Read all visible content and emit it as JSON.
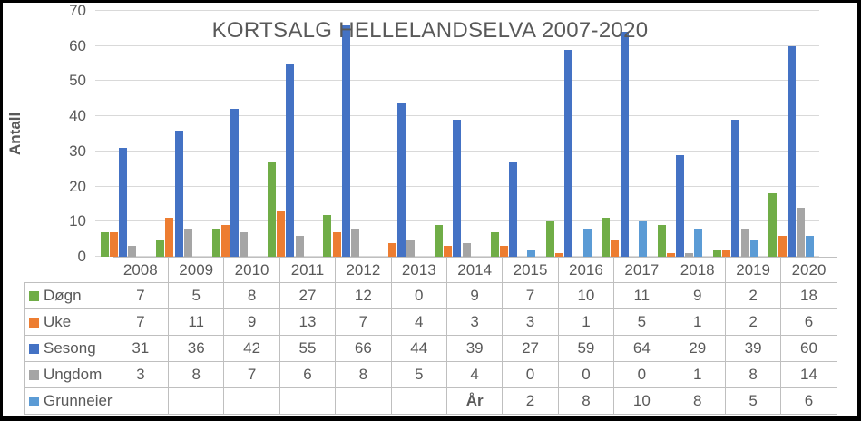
{
  "chart_data": {
    "type": "bar",
    "title": "KORTSALG HELLELANDSELVA 2007-2020",
    "xlabel": "År",
    "ylabel": "Antall",
    "ylim": [
      0,
      70
    ],
    "yticks": [
      0,
      10,
      20,
      30,
      40,
      50,
      60,
      70
    ],
    "grid": true,
    "legend_position": "data-table",
    "categories": [
      "2008",
      "2009",
      "2010",
      "2011",
      "2012",
      "2013",
      "2014",
      "2015",
      "2016",
      "2017",
      "2018",
      "2019",
      "2020"
    ],
    "series": [
      {
        "name": "Døgn",
        "color": "#70AD47",
        "values": [
          7,
          5,
          8,
          27,
          12,
          0,
          9,
          7,
          10,
          11,
          9,
          2,
          18
        ]
      },
      {
        "name": "Uke",
        "color": "#ED7D31",
        "values": [
          7,
          11,
          9,
          13,
          7,
          4,
          3,
          3,
          1,
          5,
          1,
          2,
          6
        ]
      },
      {
        "name": "Sesong",
        "color": "#4472C4",
        "values": [
          31,
          36,
          42,
          55,
          66,
          44,
          39,
          27,
          59,
          64,
          29,
          39,
          60
        ]
      },
      {
        "name": "Ungdom",
        "color": "#A5A5A5",
        "values": [
          3,
          8,
          7,
          6,
          8,
          5,
          4,
          0,
          0,
          0,
          1,
          8,
          14
        ]
      },
      {
        "name": "Grunneier",
        "color": "#5B9BD5",
        "values": [
          null,
          null,
          null,
          null,
          null,
          null,
          null,
          2,
          8,
          10,
          8,
          5,
          6
        ]
      }
    ]
  },
  "table": {
    "rows": [
      {
        "label": "Døgn",
        "color": "#70AD47",
        "cells": [
          "7",
          "5",
          "8",
          "27",
          "12",
          "0",
          "9",
          "7",
          "10",
          "11",
          "9",
          "2",
          "18"
        ],
        "bold_cells": []
      },
      {
        "label": "Uke",
        "color": "#ED7D31",
        "cells": [
          "7",
          "11",
          "9",
          "13",
          "7",
          "4",
          "3",
          "3",
          "1",
          "5",
          "1",
          "2",
          "6"
        ],
        "bold_cells": []
      },
      {
        "label": "Sesong",
        "color": "#4472C4",
        "cells": [
          "31",
          "36",
          "42",
          "55",
          "66",
          "44",
          "39",
          "27",
          "59",
          "64",
          "29",
          "39",
          "60"
        ],
        "bold_cells": []
      },
      {
        "label": "Ungdom",
        "color": "#A5A5A5",
        "cells": [
          "3",
          "8",
          "7",
          "6",
          "8",
          "5",
          "4",
          "0",
          "0",
          "0",
          "1",
          "8",
          "14"
        ],
        "bold_cells": []
      },
      {
        "label": "Grunneier",
        "color": "#5B9BD5",
        "cells": [
          "",
          "",
          "",
          "",
          "",
          "",
          "År",
          "2",
          "8",
          "10",
          "8",
          "5",
          "6"
        ],
        "bold_cells": [
          6
        ]
      }
    ]
  }
}
